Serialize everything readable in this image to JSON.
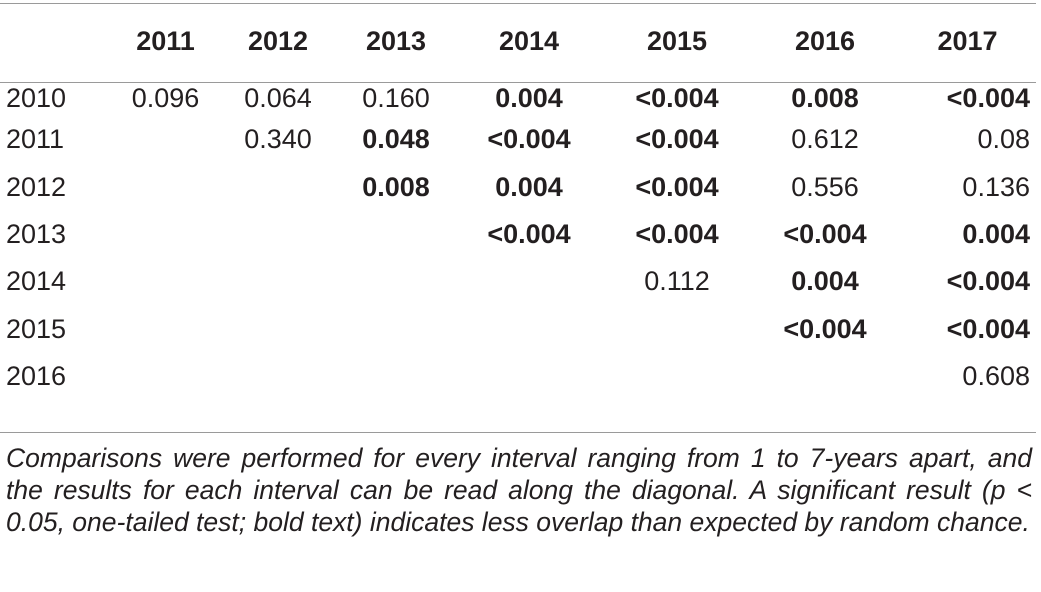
{
  "table": {
    "column_headers": [
      "",
      "2011",
      "2012",
      "2013",
      "2014",
      "2015",
      "2016",
      "2017"
    ],
    "rows": [
      {
        "label": "2010",
        "cells": [
          {
            "text": "0.096",
            "bold": false
          },
          {
            "text": "0.064",
            "bold": false
          },
          {
            "text": "0.160",
            "bold": false
          },
          {
            "text": "0.004",
            "bold": true
          },
          {
            "text": "<0.004",
            "bold": true
          },
          {
            "text": "0.008",
            "bold": true
          },
          {
            "text": "<0.004",
            "bold": true
          }
        ]
      },
      {
        "label": "2011",
        "cells": [
          {
            "text": "",
            "bold": false
          },
          {
            "text": "0.340",
            "bold": false
          },
          {
            "text": "0.048",
            "bold": true
          },
          {
            "text": "<0.004",
            "bold": true
          },
          {
            "text": "<0.004",
            "bold": true
          },
          {
            "text": "0.612",
            "bold": false
          },
          {
            "text": "0.08",
            "bold": false
          }
        ]
      },
      {
        "label": "2012",
        "cells": [
          {
            "text": "",
            "bold": false
          },
          {
            "text": "",
            "bold": false
          },
          {
            "text": "0.008",
            "bold": true
          },
          {
            "text": "0.004",
            "bold": true
          },
          {
            "text": "<0.004",
            "bold": true
          },
          {
            "text": "0.556",
            "bold": false
          },
          {
            "text": "0.136",
            "bold": false
          }
        ]
      },
      {
        "label": "2013",
        "cells": [
          {
            "text": "",
            "bold": false
          },
          {
            "text": "",
            "bold": false
          },
          {
            "text": "",
            "bold": false
          },
          {
            "text": "<0.004",
            "bold": true
          },
          {
            "text": "<0.004",
            "bold": true
          },
          {
            "text": "<0.004",
            "bold": true
          },
          {
            "text": "0.004",
            "bold": true
          }
        ]
      },
      {
        "label": "2014",
        "cells": [
          {
            "text": "",
            "bold": false
          },
          {
            "text": "",
            "bold": false
          },
          {
            "text": "",
            "bold": false
          },
          {
            "text": "",
            "bold": false
          },
          {
            "text": "0.112",
            "bold": false
          },
          {
            "text": "0.004",
            "bold": true
          },
          {
            "text": "<0.004",
            "bold": true
          }
        ]
      },
      {
        "label": "2015",
        "cells": [
          {
            "text": "",
            "bold": false
          },
          {
            "text": "",
            "bold": false
          },
          {
            "text": "",
            "bold": false
          },
          {
            "text": "",
            "bold": false
          },
          {
            "text": "",
            "bold": false
          },
          {
            "text": "<0.004",
            "bold": true
          },
          {
            "text": "<0.004",
            "bold": true
          }
        ]
      },
      {
        "label": "2016",
        "cells": [
          {
            "text": "",
            "bold": false
          },
          {
            "text": "",
            "bold": false
          },
          {
            "text": "",
            "bold": false
          },
          {
            "text": "",
            "bold": false
          },
          {
            "text": "",
            "bold": false
          },
          {
            "text": "",
            "bold": false
          },
          {
            "text": "0.608",
            "bold": false
          }
        ]
      }
    ]
  },
  "footnote": "Comparisons were performed for every interval ranging from 1 to 7-years apart, and the results for each interval can be read along the diagonal. A significant result (p < 0.05, one-tailed test; bold text) indicates less overlap than expected by random chance.",
  "colors": {
    "text": "#231f20",
    "rule": "#9a9a9a",
    "background": "#ffffff"
  }
}
